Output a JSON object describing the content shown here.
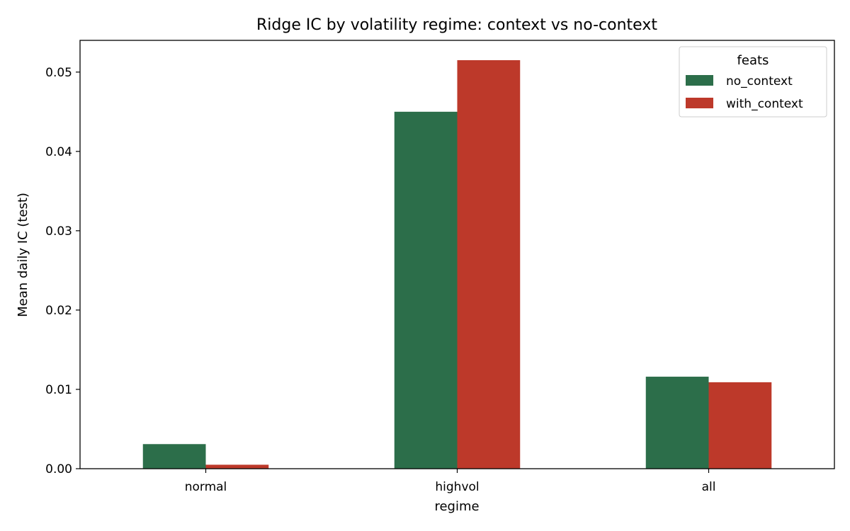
{
  "chart_data": {
    "type": "bar",
    "title": "Ridge IC by volatility regime: context vs no-context",
    "xlabel": "regime",
    "ylabel": "Mean daily IC (test)",
    "categories": [
      "normal",
      "highvol",
      "all"
    ],
    "series": [
      {
        "name": "no_context",
        "color": "#2c6e4a",
        "values": [
          0.0031,
          0.045,
          0.0116
        ]
      },
      {
        "name": "with_context",
        "color": "#bd392a",
        "values": [
          0.0005,
          0.0515,
          0.0109
        ]
      }
    ],
    "ylim": [
      0,
      0.054
    ],
    "yticks": [
      0.0,
      0.01,
      0.02,
      0.03,
      0.04,
      0.05
    ],
    "ytick_labels": [
      "0.00",
      "0.01",
      "0.02",
      "0.03",
      "0.04",
      "0.05"
    ],
    "grid": false,
    "legend": {
      "title": "feats",
      "placement": "top-right"
    }
  }
}
